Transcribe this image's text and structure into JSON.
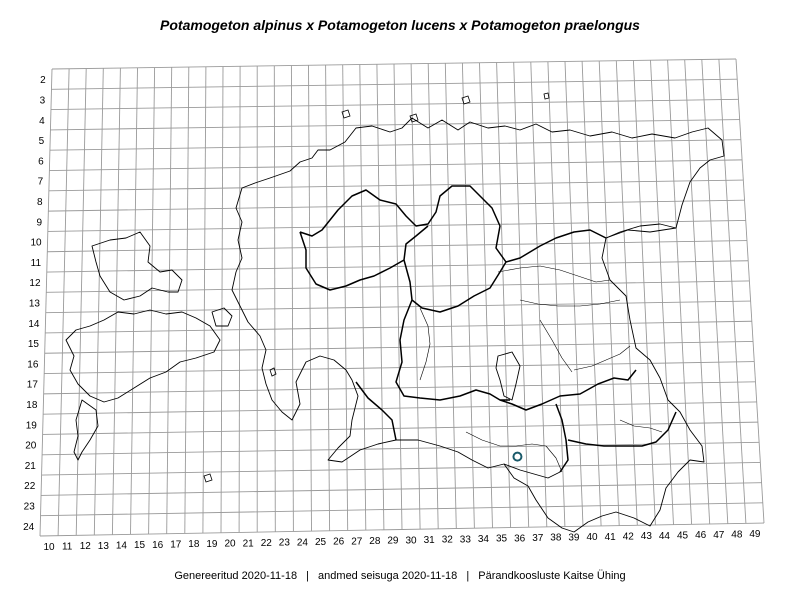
{
  "title": "Potamogeton alpinus x Potamogeton lucens x Potamogeton praelongus",
  "footer": {
    "generated": "Genereeritud 2020-11-18",
    "data_state": "andmed seisuga 2020-11-18",
    "organization": "Pärandkoosluste Kaitse Ühing",
    "separator": "|"
  },
  "map": {
    "row_labels": [
      "2",
      "3",
      "4",
      "5",
      "6",
      "7",
      "8",
      "9",
      "10",
      "11",
      "12",
      "13",
      "14",
      "15",
      "16",
      "17",
      "18",
      "19",
      "20",
      "21",
      "22",
      "23",
      "24"
    ],
    "column_labels": [
      "10",
      "11",
      "12",
      "13",
      "14",
      "15",
      "16",
      "17",
      "18",
      "19",
      "20",
      "21",
      "22",
      "23",
      "24",
      "25",
      "26",
      "27",
      "28",
      "29",
      "30",
      "31",
      "32",
      "33",
      "34",
      "35",
      "36",
      "37",
      "38",
      "39",
      "40",
      "41",
      "42",
      "43",
      "44",
      "45",
      "46",
      "47",
      "48",
      "49"
    ],
    "records": [
      {
        "column": "36",
        "row": "21"
      }
    ],
    "colors": {
      "grid": "#9a9a9a",
      "outline": "#000000",
      "record_stroke": "#1a5a6a"
    }
  }
}
